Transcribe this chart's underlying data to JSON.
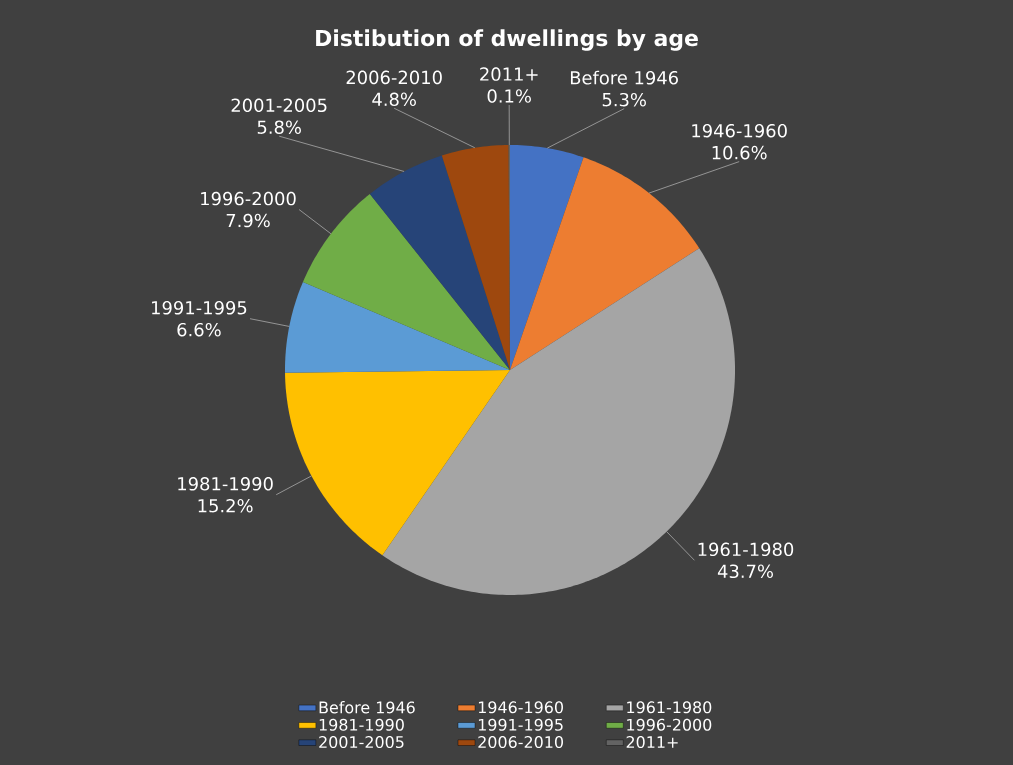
{
  "chart_data": {
    "type": "pie",
    "title": "Distibution of dwellings by age",
    "categories": [
      "Before 1946",
      "1946-1960",
      "1961-1980",
      "1981-1990",
      "1991-1995",
      "1996-2000",
      "2001-2005",
      "2006-2010",
      "2011+"
    ],
    "values": [
      5.3,
      10.6,
      43.7,
      15.2,
      6.6,
      7.9,
      5.8,
      4.8,
      0.1
    ],
    "value_labels": [
      "5.3%",
      "10.6%",
      "43.7%",
      "15.2%",
      "6.6%",
      "7.9%",
      "5.8%",
      "4.8%",
      "0.1%"
    ],
    "colors": [
      "#4472c4",
      "#ed7d31",
      "#a5a5a5",
      "#ffc000",
      "#5b9bd5",
      "#70ad47",
      "#264478",
      "#9e480e",
      "#636363"
    ],
    "legend": "bottom"
  }
}
